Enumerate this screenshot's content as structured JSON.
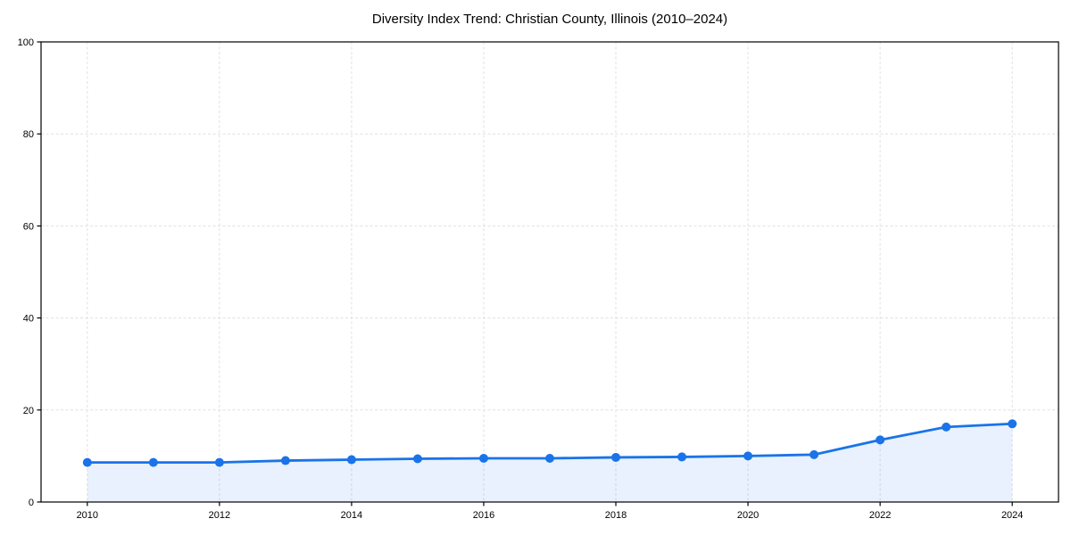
{
  "chart_data": {
    "type": "area",
    "title": "Diversity Index Trend: Christian County, Illinois (2010–2024)",
    "xlabel": "",
    "ylabel": "",
    "x": [
      2010,
      2011,
      2012,
      2013,
      2014,
      2015,
      2016,
      2017,
      2018,
      2019,
      2020,
      2021,
      2022,
      2023,
      2024
    ],
    "series": [
      {
        "name": "Diversity Index",
        "values": [
          8.6,
          8.6,
          8.6,
          9.0,
          9.2,
          9.4,
          9.5,
          9.5,
          9.7,
          9.8,
          10.0,
          10.3,
          13.5,
          16.3,
          17.0
        ]
      }
    ],
    "xlim": [
      2009.3,
      2024.7
    ],
    "ylim": [
      0,
      100
    ],
    "xticks": [
      2010,
      2012,
      2014,
      2016,
      2018,
      2020,
      2022,
      2024
    ],
    "yticks": [
      0,
      20,
      40,
      60,
      80,
      100
    ],
    "grid": "dashed",
    "legend_position": "none",
    "marker": "circle",
    "colors": {
      "line": "#1a73e8",
      "marker": "#1a73e8",
      "fill": "#1a73e8",
      "fill_opacity": 0.1,
      "gridline": "#e0e0e0",
      "spine": "#000000",
      "text": "#000000",
      "background": "#ffffff"
    }
  }
}
